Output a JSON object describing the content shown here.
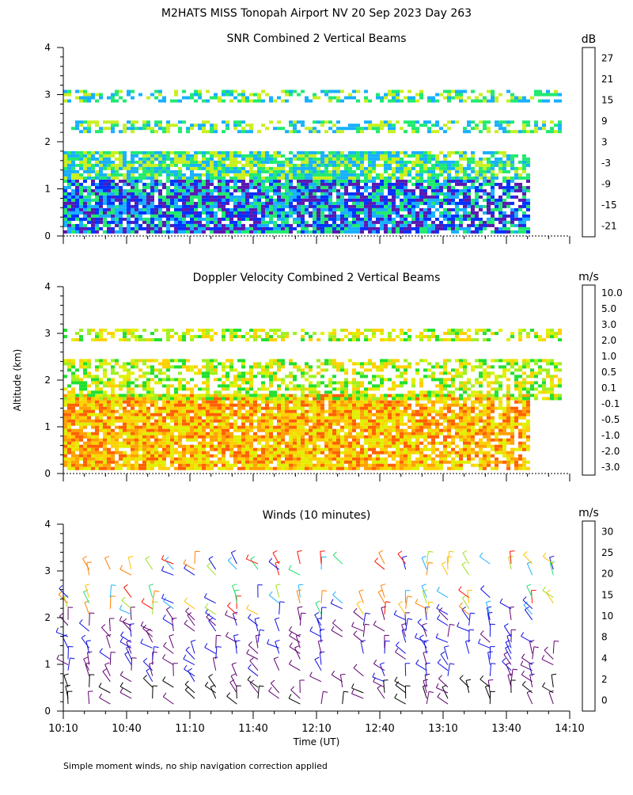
{
  "title": "M2HATS MISS Tonopah Airport NV  20 Sep 2023 Day 263",
  "footnote": "Simple moment winds, no ship navigation correction applied",
  "shared_ylabel": "Altitude (km)",
  "xlabel": "Time (UT)",
  "chart_data": [
    {
      "type": "heatmap",
      "title": "SNR Combined 2 Vertical Beams",
      "unit": "dB",
      "ylim": [
        0,
        4
      ],
      "yticks": [
        "0",
        "1",
        "2",
        "3",
        "4"
      ],
      "colorbar_labels": [
        "27",
        "21",
        "15",
        "9",
        "3",
        "-3",
        "-9",
        "-15",
        "-21"
      ],
      "colorbar_colors": [
        "#ffc000",
        "#ff8c00",
        "#ff2000",
        "#4a0060",
        "#5a18b0",
        "#0030ff",
        "#18b0ff",
        "#20ea70",
        "#c8f020"
      ],
      "layers": [
        {
          "name": "",
          "x_start": "10:10",
          "x_end": "13:50",
          "y_bottom_km": 0.1,
          "y_top_km": 1.8,
          "values_db": "-21 to -3"
        },
        {
          "name": "",
          "x_start": "10:10",
          "x_end": "14:05",
          "y_bottom_km": 2.2,
          "y_top_km": 2.45,
          "values_db": "-21 to -9"
        },
        {
          "name": "",
          "x_start": "10:10",
          "x_end": "14:05",
          "y_bottom_km": 2.85,
          "y_top_km": 3.1,
          "values_db": "-21 to -9"
        }
      ]
    },
    {
      "type": "heatmap",
      "title": "Doppler Velocity Combined 2 Vertical Beams",
      "unit": "m/s",
      "ylim": [
        0,
        4
      ],
      "yticks": [
        "0",
        "1",
        "2",
        "3",
        "4"
      ],
      "colorbar_labels": [
        "10.0",
        "5.0",
        "3.0",
        "2.0",
        "1.0",
        "0.5",
        "0.1",
        "-0.1",
        "-0.5",
        "-1.0",
        "-2.0",
        "-3.0"
      ],
      "colorbar_colors": [
        "#300020",
        "#4a0090",
        "#3010d8",
        "#0048ff",
        "#00b4ff",
        "#20e030",
        "#a0f020",
        "#e0f000",
        "#ffd000",
        "#ffa000",
        "#ff6000",
        "#ff1000"
      ],
      "layers": [
        {
          "name": "",
          "x_start": "10:10",
          "x_end": "13:50",
          "y_bottom_km": 0.1,
          "y_top_km": 1.7,
          "values_ms": "-1.0 to 0.1"
        },
        {
          "name": "",
          "x_start": "10:10",
          "x_end": "14:05",
          "y_bottom_km": 1.6,
          "y_top_km": 2.45,
          "values_ms": "-0.1 to 0.5"
        },
        {
          "name": "",
          "x_start": "10:10",
          "x_end": "14:05",
          "y_bottom_km": 2.85,
          "y_top_km": 3.1,
          "values_ms": "-0.5 to 0.1"
        }
      ]
    },
    {
      "type": "scatter",
      "title": "Winds (10 minutes)",
      "unit": "m/s",
      "ylim": [
        0,
        4
      ],
      "yticks": [
        "0",
        "1",
        "2",
        "3",
        "4"
      ],
      "xticks": [
        "10:10",
        "10:40",
        "11:10",
        "11:40",
        "12:10",
        "12:40",
        "13:10",
        "13:40",
        "14:10"
      ],
      "colorbar_labels": [
        "30",
        "25",
        "20",
        "15",
        "10",
        "8",
        "4",
        "2",
        "0"
      ],
      "colorbar_colors": [
        "#ff1000",
        "#ff8000",
        "#ffc000",
        "#a0e020",
        "#20e070",
        "#20b0ff",
        "#1010e0",
        "#600070",
        "#000000"
      ],
      "barb_times": [
        "10:10",
        "10:20",
        "10:30",
        "10:40",
        "10:50",
        "11:00",
        "11:10",
        "11:20",
        "11:30",
        "11:40",
        "11:50",
        "12:00",
        "12:10",
        "12:20",
        "12:30",
        "12:40",
        "12:50",
        "13:00",
        "13:10",
        "13:20",
        "13:30",
        "13:40",
        "13:50",
        "14:00"
      ]
    }
  ]
}
